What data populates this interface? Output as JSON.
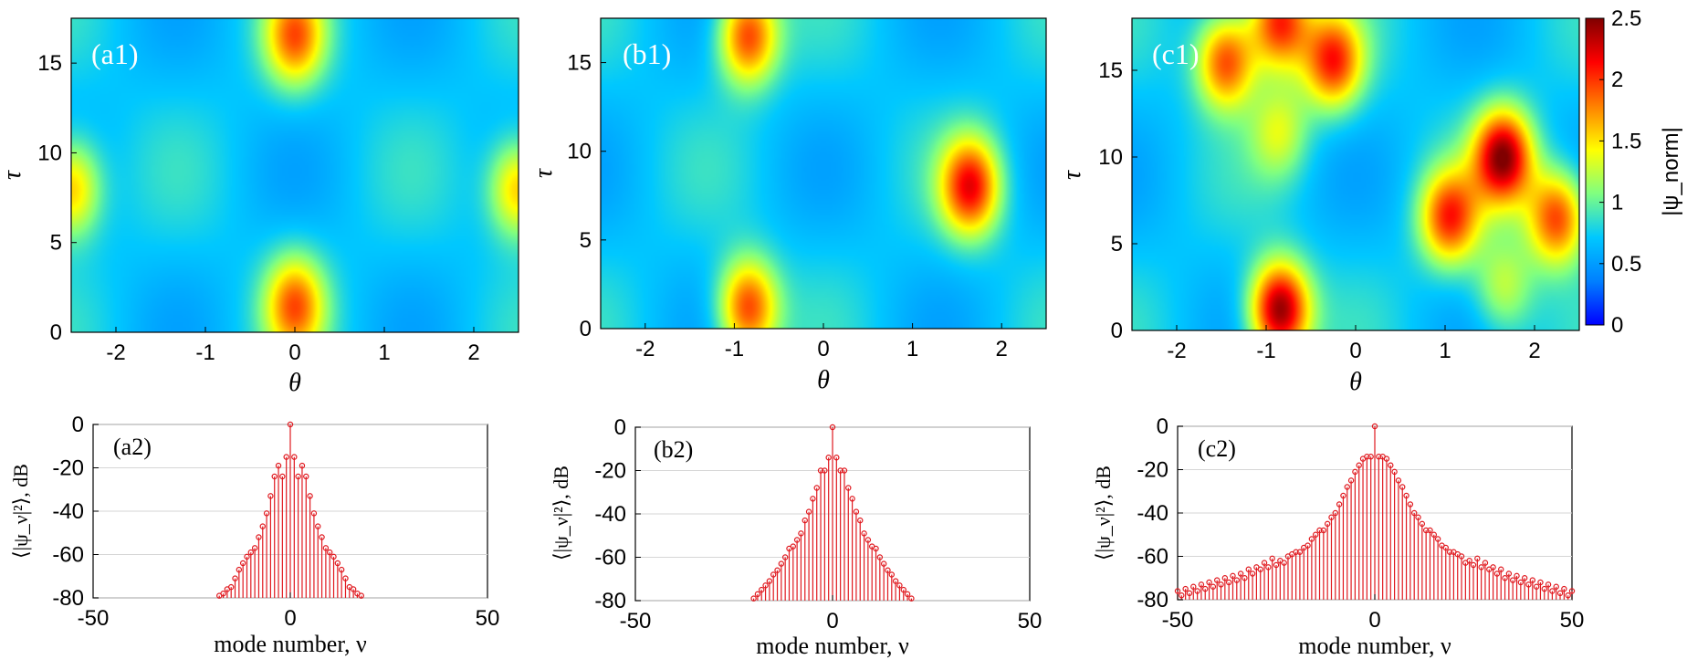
{
  "colorbar": {
    "label": "|ψ_norm|",
    "ticks": [
      0,
      0.5,
      1,
      1.5,
      2,
      2.5
    ],
    "tick_labels": [
      "0",
      "0.5",
      "1",
      "1.5",
      "2",
      "2.5"
    ],
    "range": [
      0,
      2.5
    ]
  },
  "colormap": [
    "#0000ff",
    "#0080ff",
    "#00c8ff",
    "#80ff80",
    "#ffff00",
    "#ff8000",
    "#ff0000",
    "#800000"
  ],
  "stem_color": "#e0191f",
  "chart_data": [
    {
      "type": "heatmap",
      "label": "(a1)",
      "xlabel": "θ",
      "ylabel": "τ",
      "xlim": [
        -2.5,
        2.5
      ],
      "ylim": [
        0,
        17.5
      ],
      "xticks": [
        -2,
        -1,
        0,
        1,
        2
      ],
      "xtick_labels": [
        "-2",
        "-1",
        "0",
        "1",
        "2"
      ],
      "yticks": [
        0,
        5,
        10,
        15
      ],
      "ytick_labels": [
        "0",
        "5",
        "10",
        "15"
      ],
      "peaks": [
        {
          "theta": 0,
          "tau": 1.5,
          "value": 1.8
        },
        {
          "theta": 0,
          "tau": 16.5,
          "value": 1.8
        },
        {
          "theta": -2.5,
          "tau": 8,
          "value": 1.7
        },
        {
          "theta": 2.5,
          "tau": 8,
          "value": 1.7
        }
      ]
    },
    {
      "type": "heatmap",
      "label": "(b1)",
      "xlabel": "θ",
      "ylabel": "τ",
      "xlim": [
        -2.5,
        2.5
      ],
      "ylim": [
        0,
        17.5
      ],
      "xticks": [
        -2,
        -1,
        0,
        1,
        2
      ],
      "xtick_labels": [
        "-2",
        "-1",
        "0",
        "1",
        "2"
      ],
      "yticks": [
        0,
        5,
        10,
        15
      ],
      "ytick_labels": [
        "0",
        "5",
        "10",
        "15"
      ],
      "peaks": [
        {
          "theta": -0.85,
          "tau": 16.5,
          "value": 2.0
        },
        {
          "theta": -0.85,
          "tau": 1.2,
          "value": 2.0
        },
        {
          "theta": 1.65,
          "tau": 8,
          "value": 2.1
        }
      ]
    },
    {
      "type": "heatmap",
      "label": "(c1)",
      "xlabel": "θ",
      "ylabel": "τ",
      "xlim": [
        -2.5,
        2.5
      ],
      "ylim": [
        0,
        18
      ],
      "xticks": [
        -2,
        -1,
        0,
        1,
        2
      ],
      "xtick_labels": [
        "-2",
        "-1",
        "0",
        "1",
        "2"
      ],
      "yticks": [
        0,
        5,
        10,
        15
      ],
      "ytick_labels": [
        "0",
        "5",
        "10",
        "15"
      ],
      "peaks": [
        {
          "theta": -0.85,
          "tau": 1.2,
          "value": 2.5
        },
        {
          "theta": 1.65,
          "tau": 10,
          "value": 2.4
        },
        {
          "theta": -1.45,
          "tau": 15.5,
          "value": 2.0
        },
        {
          "theta": -0.25,
          "tau": 15.5,
          "value": 2.0
        },
        {
          "theta": -0.85,
          "tau": 17.8,
          "value": 2.1
        },
        {
          "theta": 1.05,
          "tau": 6.5,
          "value": 2.0
        },
        {
          "theta": 2.25,
          "tau": 6.5,
          "value": 2.0
        },
        {
          "theta": -0.85,
          "tau": 11.5,
          "value": 1.3
        },
        {
          "theta": 1.65,
          "tau": 2.5,
          "value": 1.3
        }
      ]
    },
    {
      "type": "stem",
      "label": "(a2)",
      "xlabel": "mode number, ν",
      "ylabel": "⟨|ψ_ν|²⟩, dB",
      "xlim": [
        -50,
        50
      ],
      "ylim": [
        -80,
        0
      ],
      "xticks": [
        -50,
        0,
        50
      ],
      "xtick_labels": [
        "-50",
        "0",
        "50"
      ],
      "yticks": [
        0,
        -20,
        -40,
        -60,
        -80
      ],
      "ytick_labels": [
        "0",
        "-20",
        "-40",
        "-60",
        "-80"
      ],
      "x": [
        -18,
        -17,
        -16,
        -15,
        -14,
        -13,
        -12,
        -11,
        -10,
        -9,
        -8,
        -7,
        -6,
        -5,
        -4,
        -3,
        -2,
        -1,
        0,
        1,
        2,
        3,
        4,
        5,
        6,
        7,
        8,
        9,
        10,
        11,
        12,
        13,
        14,
        15,
        16,
        17,
        18
      ],
      "y": [
        -79,
        -78,
        -76,
        -75,
        -71,
        -67,
        -64,
        -61,
        -59,
        -57,
        -52,
        -47,
        -41,
        -33,
        -24,
        -19,
        -24,
        -15,
        0,
        -15,
        -24,
        -19,
        -24,
        -33,
        -41,
        -47,
        -52,
        -57,
        -59,
        -61,
        -64,
        -67,
        -71,
        -75,
        -76,
        -78,
        -79
      ]
    },
    {
      "type": "stem",
      "label": "(b2)",
      "xlabel": "mode number, ν",
      "ylabel": "⟨|ψ_ν|²⟩, dB",
      "xlim": [
        -50,
        50
      ],
      "ylim": [
        -80,
        0
      ],
      "xticks": [
        -50,
        0,
        50
      ],
      "xtick_labels": [
        "-50",
        "0",
        "50"
      ],
      "yticks": [
        0,
        -20,
        -40,
        -60,
        -80
      ],
      "ytick_labels": [
        "0",
        "-20",
        "-40",
        "-60",
        "-80"
      ],
      "x": [
        -20,
        -19,
        -18,
        -17,
        -16,
        -15,
        -14,
        -13,
        -12,
        -11,
        -10,
        -9,
        -8,
        -7,
        -6,
        -5,
        -4,
        -3,
        -2,
        -1,
        0,
        1,
        2,
        3,
        4,
        5,
        6,
        7,
        8,
        9,
        10,
        11,
        12,
        13,
        14,
        15,
        16,
        17,
        18,
        19,
        20
      ],
      "y": [
        -79,
        -77,
        -75,
        -73,
        -71,
        -68,
        -66,
        -63,
        -60,
        -56,
        -55,
        -52,
        -49,
        -43,
        -39,
        -33,
        -28,
        -20,
        -20,
        -14,
        0,
        -14,
        -20,
        -20,
        -28,
        -33,
        -39,
        -43,
        -49,
        -52,
        -55,
        -56,
        -60,
        -63,
        -66,
        -68,
        -71,
        -73,
        -75,
        -77,
        -79
      ]
    },
    {
      "type": "stem",
      "label": "(c2)",
      "xlabel": "mode number, ν",
      "ylabel": "⟨|ψ_ν|²⟩, dB",
      "xlim": [
        -50,
        50
      ],
      "ylim": [
        -80,
        0
      ],
      "xticks": [
        -50,
        0,
        50
      ],
      "xtick_labels": [
        "-50",
        "0",
        "50"
      ],
      "yticks": [
        0,
        -20,
        -40,
        -60,
        -80
      ],
      "ytick_labels": [
        "0",
        "-20",
        "-40",
        "-60",
        "-80"
      ],
      "x": [
        -50,
        -49,
        -48,
        -47,
        -46,
        -45,
        -44,
        -43,
        -42,
        -41,
        -40,
        -39,
        -38,
        -37,
        -36,
        -35,
        -34,
        -33,
        -32,
        -31,
        -30,
        -29,
        -28,
        -27,
        -26,
        -25,
        -24,
        -23,
        -22,
        -21,
        -20,
        -19,
        -18,
        -17,
        -16,
        -15,
        -14,
        -13,
        -12,
        -11,
        -10,
        -9,
        -8,
        -7,
        -6,
        -5,
        -4,
        -3,
        -2,
        -1,
        0,
        1,
        2,
        3,
        4,
        5,
        6,
        7,
        8,
        9,
        10,
        11,
        12,
        13,
        14,
        15,
        16,
        17,
        18,
        19,
        20,
        21,
        22,
        23,
        24,
        25,
        26,
        27,
        28,
        29,
        30,
        31,
        32,
        33,
        34,
        35,
        36,
        37,
        38,
        39,
        40,
        41,
        42,
        43,
        44,
        45,
        46,
        47,
        48,
        49,
        50
      ],
      "y": [
        -76,
        -78,
        -75,
        -77,
        -74,
        -76,
        -73,
        -75,
        -72,
        -74,
        -71,
        -73,
        -70,
        -72,
        -69,
        -71,
        -68,
        -70,
        -66,
        -68,
        -65,
        -66,
        -63,
        -65,
        -61,
        -64,
        -62,
        -63,
        -60,
        -59,
        -58,
        -58,
        -56,
        -55,
        -52,
        -50,
        -48,
        -48,
        -45,
        -42,
        -40,
        -36,
        -32,
        -28,
        -25,
        -21,
        -18,
        -15,
        -14,
        -14,
        0,
        -14,
        -14,
        -15,
        -18,
        -21,
        -25,
        -28,
        -32,
        -36,
        -40,
        -42,
        -45,
        -48,
        -48,
        -50,
        -52,
        -55,
        -56,
        -58,
        -58,
        -59,
        -60,
        -63,
        -62,
        -64,
        -61,
        -65,
        -63,
        -66,
        -65,
        -68,
        -66,
        -70,
        -68,
        -71,
        -69,
        -72,
        -70,
        -73,
        -71,
        -74,
        -72,
        -75,
        -73,
        -76,
        -74,
        -77,
        -75,
        -78,
        -76
      ]
    }
  ]
}
